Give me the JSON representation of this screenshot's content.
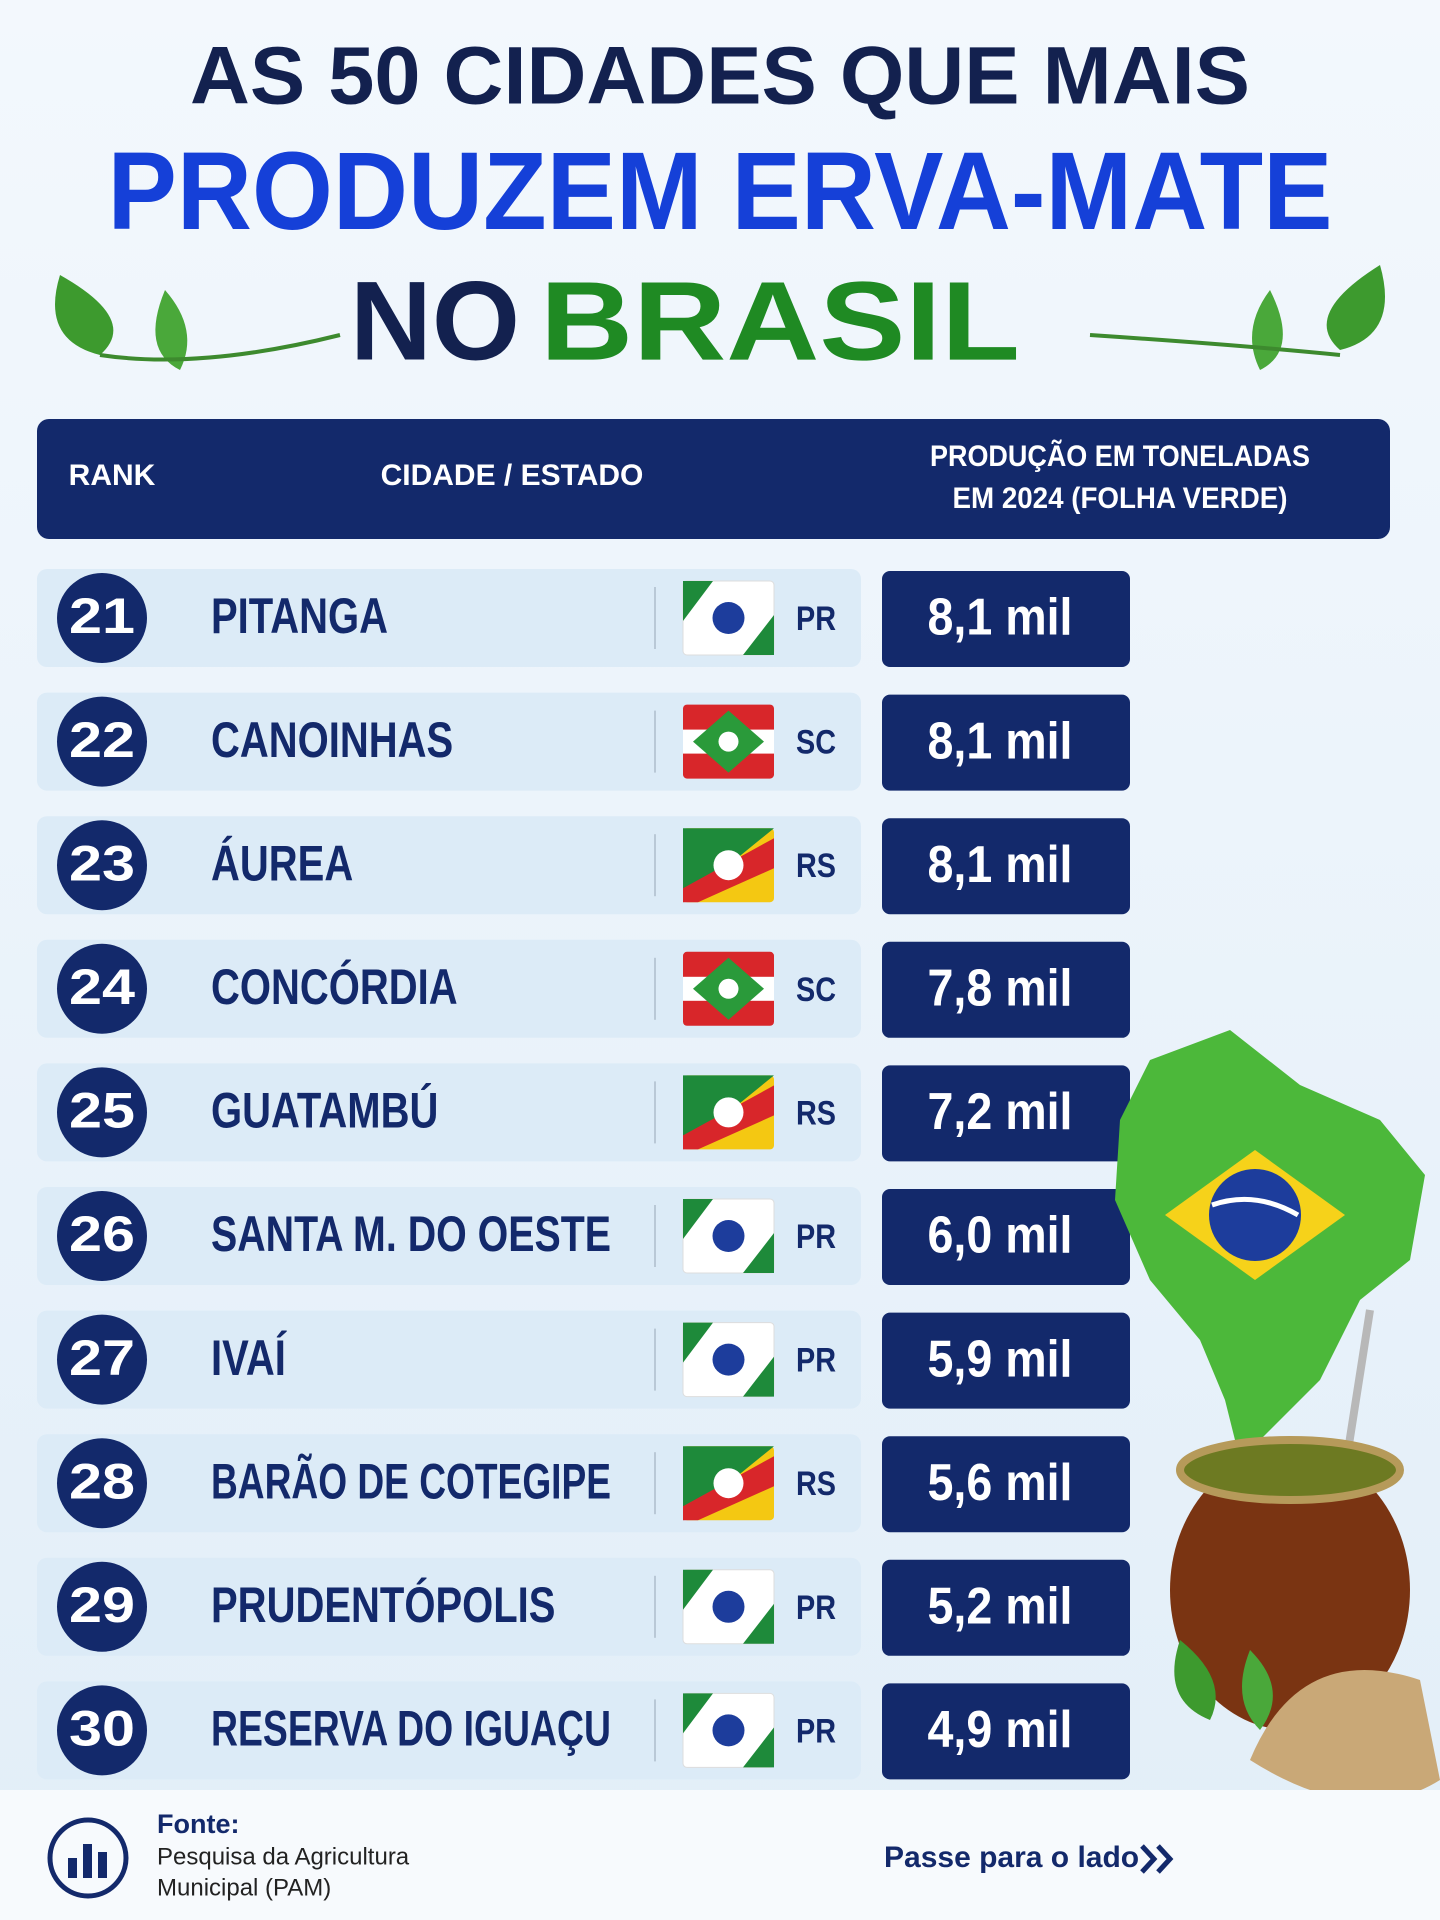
{
  "header": {
    "title_line1": "AS 50 CIDADES QUE MAIS",
    "title_line2": "PRODUZEM ERVA-MATE",
    "title_line3_dark": "NO",
    "title_line3_green": "BRASIL"
  },
  "table": {
    "columns": [
      "RANK",
      "CIDADE / ESTADO",
      "PRODUÇÃO EM TONELADAS",
      "EM 2024 (FOLHA VERDE)"
    ],
    "rows": [
      [
        "21",
        "PITANGA",
        "PR",
        "8,1 mil"
      ],
      [
        "22",
        "CANOINHAS",
        "SC",
        "8,1 mil"
      ],
      [
        "23",
        "ÁUREA",
        "RS",
        "8,1 mil"
      ],
      [
        "24",
        "CONCÓRDIA",
        "SC",
        "7,8 mil"
      ],
      [
        "25",
        "GUATAMBÚ",
        "RS",
        "7,2 mil"
      ],
      [
        "26",
        "SANTA M. DO OESTE",
        "PR",
        "6,0 mil"
      ],
      [
        "27",
        "IVAÍ",
        "PR",
        "5,9 mil"
      ],
      [
        "28",
        "BARÃO DE COTEGIPE",
        "RS",
        "5,6 mil"
      ],
      [
        "29",
        "PRUDENTÓPOLIS",
        "PR",
        "5,2 mil"
      ],
      [
        "30",
        "RESERVA DO IGUAÇU",
        "PR",
        "4,9 mil"
      ]
    ]
  },
  "footer": {
    "source_label": "Fonte:",
    "source_line1": "Pesquisa da Agricultura",
    "source_line2": "Municipal (PAM)",
    "swipe": "Passe para o lado"
  }
}
